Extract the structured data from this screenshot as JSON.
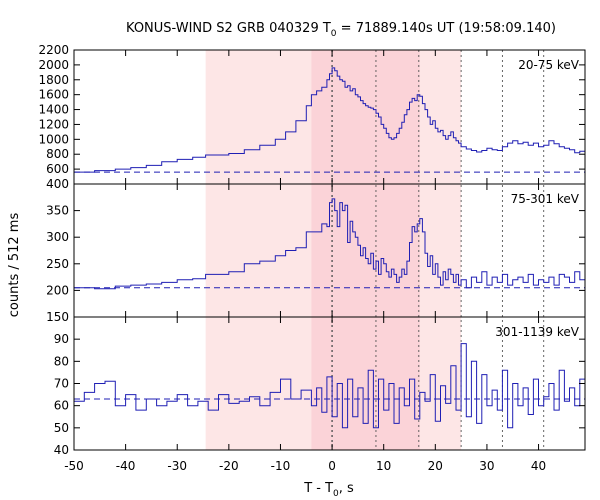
{
  "chart_data": {
    "type": "line",
    "title_main": "KONUS-WIND S2 GRB 040329 T",
    "title_sub": "0",
    "title_rest": " = 71889.140s UT (19:58:09.140)",
    "ylabel": "counts / 512 ms",
    "xlabel_main": "T - T",
    "xlabel_sub": "0",
    "xlabel_rest": ", s",
    "xlim": [
      -50,
      49
    ],
    "x_ticks": [
      -50,
      -40,
      -30,
      -20,
      -10,
      0,
      10,
      20,
      30,
      40
    ],
    "shaded_regions": [
      {
        "x": [
          -24.5,
          25
        ],
        "color": "#fde6e6"
      },
      {
        "x": [
          -4,
          17
        ],
        "color": "#fbd3d8"
      }
    ],
    "vertical_lines": [
      0,
      8.5,
      16.8,
      25,
      33,
      41
    ],
    "panels": [
      {
        "label": "20-75 keV",
        "ylim": [
          400,
          2200
        ],
        "y_ticks": [
          400,
          600,
          800,
          1000,
          1200,
          1400,
          1600,
          1800,
          2000,
          2200
        ],
        "background_level": 560,
        "x": [
          -50,
          -46,
          -42,
          -39,
          -36,
          -33,
          -30,
          -27,
          -24.5,
          -20,
          -17,
          -14,
          -11,
          -9,
          -7,
          -5,
          -4,
          -3,
          -2,
          -1,
          -0.5,
          0,
          0.5,
          1,
          1.5,
          2,
          2.5,
          3,
          3.5,
          4,
          4.5,
          5,
          5.5,
          6,
          6.5,
          7,
          7.5,
          8,
          8.5,
          9,
          9.5,
          10,
          10.5,
          11,
          11.5,
          12,
          12.5,
          13,
          13.5,
          14,
          14.5,
          15,
          15.5,
          16,
          16.5,
          17,
          17.5,
          18,
          18.5,
          19,
          19.5,
          20,
          20.5,
          21,
          21.5,
          22,
          22.5,
          23,
          23.5,
          24,
          24.5,
          25,
          26,
          27,
          28,
          29,
          30,
          31,
          32,
          33,
          34,
          35,
          36,
          37,
          38,
          39,
          40,
          41,
          42,
          43,
          44,
          45,
          46,
          47,
          48
        ],
        "y": [
          560,
          580,
          600,
          620,
          650,
          700,
          730,
          760,
          790,
          810,
          860,
          920,
          1000,
          1100,
          1250,
          1450,
          1600,
          1650,
          1700,
          1800,
          1880,
          1960,
          1920,
          1850,
          1800,
          1780,
          1700,
          1720,
          1650,
          1680,
          1600,
          1570,
          1520,
          1480,
          1450,
          1430,
          1420,
          1400,
          1350,
          1300,
          1200,
          1150,
          1080,
          1020,
          1000,
          1020,
          1080,
          1150,
          1230,
          1330,
          1400,
          1500,
          1550,
          1520,
          1600,
          1580,
          1480,
          1400,
          1300,
          1200,
          1250,
          1150,
          1100,
          1120,
          1050,
          1000,
          1050,
          1100,
          1020,
          980,
          950,
          900,
          870,
          850,
          830,
          850,
          880,
          860,
          850,
          900,
          950,
          980,
          940,
          960,
          920,
          950,
          900,
          920,
          980,
          940,
          900,
          880,
          860,
          820,
          840
        ]
      },
      {
        "label": "75-301 keV",
        "ylim": [
          150,
          400
        ],
        "y_ticks": [
          150,
          200,
          250,
          300,
          350
        ],
        "background_level": 205,
        "x": [
          -50,
          -46,
          -42,
          -39,
          -36,
          -33,
          -30,
          -27,
          -24.5,
          -20,
          -17,
          -14,
          -11,
          -9,
          -7,
          -5,
          -4,
          -3,
          -2,
          -1,
          -0.5,
          0,
          0.5,
          1,
          1.5,
          2,
          2.5,
          3,
          3.5,
          4,
          4.5,
          5,
          5.5,
          6,
          6.5,
          7,
          7.5,
          8,
          8.5,
          9,
          9.5,
          10,
          10.5,
          11,
          11.5,
          12,
          12.5,
          13,
          13.5,
          14,
          14.5,
          15,
          15.5,
          16,
          16.5,
          17,
          17.5,
          18,
          18.5,
          19,
          19.5,
          20,
          20.5,
          21,
          21.5,
          22,
          22.5,
          23,
          23.5,
          24,
          24.5,
          25,
          26,
          27,
          28,
          29,
          30,
          31,
          32,
          33,
          34,
          35,
          36,
          37,
          38,
          39,
          40,
          41,
          42,
          43,
          44,
          45,
          46,
          47,
          48
        ],
        "y": [
          205,
          203,
          208,
          210,
          212,
          215,
          220,
          222,
          230,
          235,
          250,
          255,
          265,
          275,
          280,
          310,
          310,
          310,
          325,
          320,
          365,
          372,
          350,
          320,
          365,
          350,
          360,
          290,
          330,
          310,
          300,
          285,
          265,
          280,
          260,
          250,
          270,
          240,
          255,
          230,
          260,
          250,
          235,
          225,
          240,
          230,
          215,
          225,
          240,
          230,
          255,
          290,
          320,
          310,
          325,
          335,
          310,
          270,
          245,
          265,
          230,
          250,
          225,
          210,
          235,
          220,
          240,
          230,
          215,
          230,
          210,
          220,
          205,
          225,
          215,
          235,
          210,
          225,
          215,
          230,
          210,
          220,
          225,
          215,
          230,
          210,
          220,
          215,
          225,
          210,
          230,
          225,
          215,
          235,
          220
        ]
      },
      {
        "label": "301-1139 keV",
        "ylim": [
          40,
          100
        ],
        "y_ticks": [
          40,
          50,
          60,
          70,
          80,
          90
        ],
        "background_level": 63,
        "x": [
          -50,
          -48,
          -46,
          -44,
          -42,
          -40,
          -38,
          -36,
          -34,
          -32,
          -30,
          -28,
          -26,
          -24,
          -22,
          -20,
          -18,
          -16,
          -14,
          -12,
          -10,
          -8,
          -6,
          -4,
          -3,
          -2,
          -1,
          0,
          1,
          2,
          3,
          4,
          5,
          6,
          7,
          8,
          9,
          10,
          11,
          12,
          13,
          14,
          15,
          16,
          17,
          18,
          19,
          20,
          21,
          22,
          23,
          24,
          25,
          26,
          27,
          28,
          29,
          30,
          31,
          32,
          33,
          34,
          35,
          36,
          37,
          38,
          39,
          40,
          41,
          42,
          43,
          44,
          45,
          46,
          47,
          48
        ],
        "y": [
          62,
          66,
          70,
          71,
          60,
          65,
          58,
          63,
          60,
          62,
          65,
          60,
          62,
          58,
          65,
          61,
          62,
          64,
          60,
          66,
          72,
          63,
          67,
          60,
          68,
          57,
          73,
          55,
          70,
          50,
          72,
          55,
          68,
          52,
          76,
          50,
          72,
          58,
          70,
          52,
          68,
          60,
          72,
          54,
          66,
          62,
          74,
          53,
          69,
          61,
          78,
          58,
          88,
          55,
          80,
          52,
          74,
          60,
          67,
          58,
          76,
          50,
          70,
          60,
          68,
          56,
          72,
          60,
          64,
          70,
          58,
          76,
          62,
          68,
          60,
          72
        ]
      }
    ]
  }
}
